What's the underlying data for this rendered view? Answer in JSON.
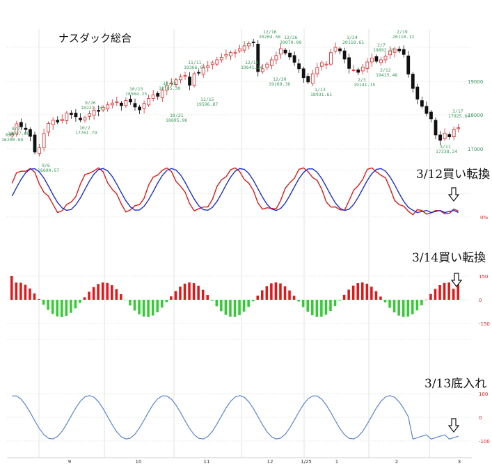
{
  "chart_data": {
    "type": "candlestick-with-indicators",
    "title": "ナスダック総合",
    "x_labels": [
      "9",
      "10",
      "11",
      "12",
      "1/25",
      "1",
      "2",
      "3"
    ],
    "price_panel": {
      "y_ticks": [
        "19000",
        "18000",
        "17000"
      ],
      "annotations": [
        {
          "label": "8/27",
          "value": "18017.69"
        },
        {
          "label": "8/5",
          "value": "16200.08"
        },
        {
          "label": "9/6",
          "value": "16690.57"
        },
        {
          "label": "9/26",
          "value": "18221.34"
        },
        {
          "label": "10/2",
          "value": "17761.79"
        },
        {
          "label": "10/15",
          "value": "18564.25"
        },
        {
          "label": "10/21",
          "value": "18695.96"
        },
        {
          "label": "10/28",
          "value": "18785.30"
        },
        {
          "label": "11/11",
          "value": "19366.07"
        },
        {
          "label": "11/15",
          "value": "19596.87"
        },
        {
          "label": "12/10",
          "value": "19641.34"
        },
        {
          "label": "12/16",
          "value": "20204.58"
        },
        {
          "label": "12/20",
          "value": "19169.36"
        },
        {
          "label": "12/26",
          "value": "20070.00"
        },
        {
          "label": "1/13",
          "value": "18931.61"
        },
        {
          "label": "1/24",
          "value": "20118.61"
        },
        {
          "label": "2/3",
          "value": "19141.15"
        },
        {
          "label": "2/7",
          "value": "19892.55"
        },
        {
          "label": "2/12",
          "value": "19415.48"
        },
        {
          "label": "2/19",
          "value": "20110.12"
        },
        {
          "label": "3/11",
          "value": "17238.24"
        },
        {
          "label": "3/17",
          "value": "17925.64"
        }
      ],
      "closes": [
        17630,
        17910,
        17830,
        17750,
        17560,
        17120,
        17240,
        17640,
        17920,
        18010,
        17960,
        18040,
        18210,
        18170,
        18110,
        18020,
        18080,
        18190,
        18290,
        18260,
        18370,
        18440,
        18490,
        18530,
        18420,
        18560,
        18520,
        18380,
        18300,
        18480,
        18620,
        18720,
        18680,
        18850,
        18990,
        19050,
        19140,
        19220,
        19260,
        18990,
        19310,
        19340,
        19480,
        19530,
        19620,
        19700,
        19770,
        19850,
        19900,
        19910,
        20010,
        20090,
        20160,
        20180,
        19370,
        19450,
        19580,
        19700,
        19820,
        20010,
        19890,
        19780,
        19630,
        19450,
        19200,
        19080,
        19310,
        19480,
        19620,
        19580,
        19900,
        20050,
        19950,
        19720,
        19460,
        19420,
        19350,
        19500,
        19640,
        19750,
        19660,
        19700,
        19800,
        19950,
        20000,
        19950,
        19850,
        19300,
        18900,
        18600,
        18400,
        18200,
        18050,
        17600,
        17450,
        17650,
        17550,
        17750,
        17800
      ]
    },
    "panels": [
      {
        "name": "stochastic",
        "note": "3/12買い転換",
        "y_ticks": [
          "0%"
        ],
        "series_colors": [
          "#e01818",
          "#1a2fd0"
        ]
      },
      {
        "name": "macd-histogram",
        "note": "3/14買い転換",
        "y_ticks": [
          "150",
          "0",
          "-150"
        ],
        "colors": {
          "positive": "#e01818",
          "negative": "#33cc33"
        }
      },
      {
        "name": "oscillator",
        "note": "3/13底入れ",
        "y_ticks": [
          "100",
          "0",
          "-100"
        ],
        "series_color": "#5b82d8"
      }
    ]
  }
}
